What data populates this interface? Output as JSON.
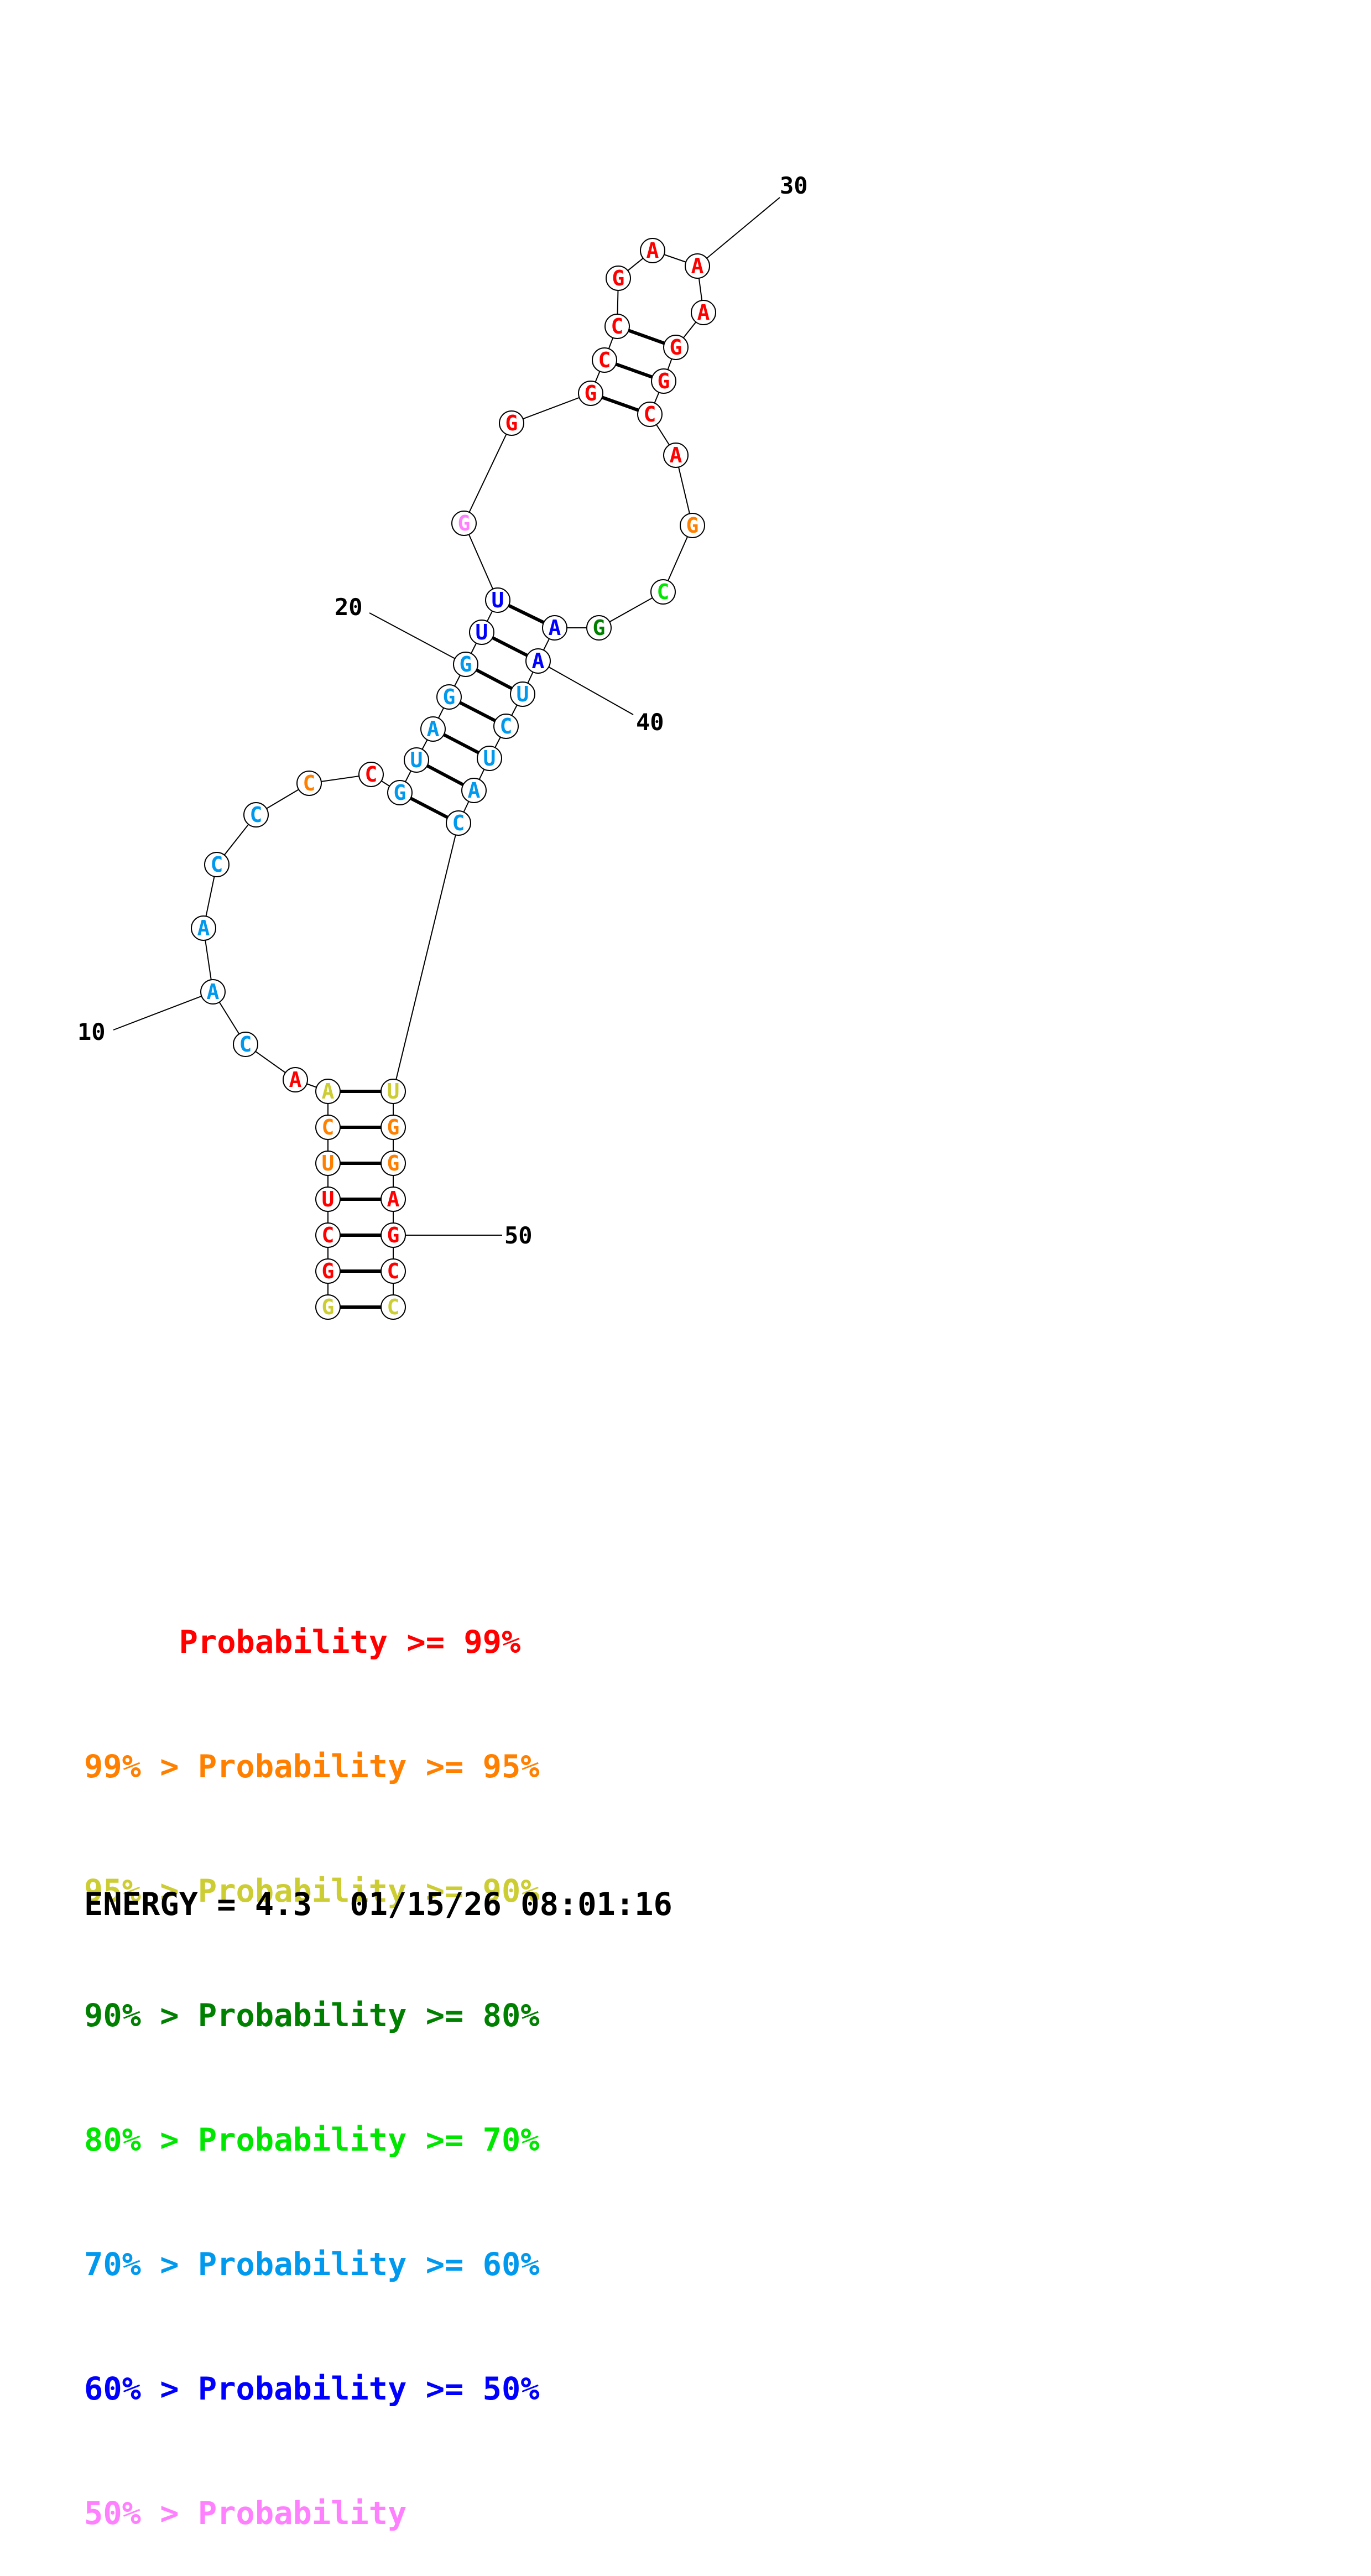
{
  "diagram": {
    "nucleotides": [
      {
        "n": 1,
        "base": "G",
        "level": 3
      },
      {
        "n": 2,
        "base": "G",
        "level": 1
      },
      {
        "n": 3,
        "base": "C",
        "level": 1
      },
      {
        "n": 4,
        "base": "U",
        "level": 1
      },
      {
        "n": 5,
        "base": "U",
        "level": 2
      },
      {
        "n": 6,
        "base": "C",
        "level": 2
      },
      {
        "n": 7,
        "base": "A",
        "level": 3
      },
      {
        "n": 8,
        "base": "A",
        "level": 1
      },
      {
        "n": 9,
        "base": "C",
        "level": 6
      },
      {
        "n": 10,
        "base": "A",
        "level": 6
      },
      {
        "n": 11,
        "base": "A",
        "level": 6
      },
      {
        "n": 12,
        "base": "C",
        "level": 6
      },
      {
        "n": 13,
        "base": "C",
        "level": 6
      },
      {
        "n": 14,
        "base": "C",
        "level": 2
      },
      {
        "n": 15,
        "base": "C",
        "level": 1
      },
      {
        "n": 16,
        "base": "G",
        "level": 6
      },
      {
        "n": 17,
        "base": "U",
        "level": 6
      },
      {
        "n": 18,
        "base": "A",
        "level": 6
      },
      {
        "n": 19,
        "base": "G",
        "level": 6
      },
      {
        "n": 20,
        "base": "G",
        "level": 6
      },
      {
        "n": 21,
        "base": "U",
        "level": 7
      },
      {
        "n": 22,
        "base": "U",
        "level": 7
      },
      {
        "n": 23,
        "base": "G",
        "level": 8
      },
      {
        "n": 24,
        "base": "G",
        "level": 1
      },
      {
        "n": 25,
        "base": "G",
        "level": 1
      },
      {
        "n": 26,
        "base": "C",
        "level": 1
      },
      {
        "n": 27,
        "base": "C",
        "level": 1
      },
      {
        "n": 28,
        "base": "G",
        "level": 1
      },
      {
        "n": 29,
        "base": "A",
        "level": 1
      },
      {
        "n": 30,
        "base": "A",
        "level": 1
      },
      {
        "n": 31,
        "base": "A",
        "level": 1
      },
      {
        "n": 32,
        "base": "G",
        "level": 1
      },
      {
        "n": 33,
        "base": "G",
        "level": 1
      },
      {
        "n": 34,
        "base": "C",
        "level": 1
      },
      {
        "n": 35,
        "base": "A",
        "level": 1
      },
      {
        "n": 36,
        "base": "G",
        "level": 2
      },
      {
        "n": 37,
        "base": "C",
        "level": 5
      },
      {
        "n": 38,
        "base": "G",
        "level": 4
      },
      {
        "n": 39,
        "base": "A",
        "level": 7
      },
      {
        "n": 40,
        "base": "A",
        "level": 7
      },
      {
        "n": 41,
        "base": "U",
        "level": 6
      },
      {
        "n": 42,
        "base": "C",
        "level": 6
      },
      {
        "n": 43,
        "base": "U",
        "level": 6
      },
      {
        "n": 44,
        "base": "A",
        "level": 6
      },
      {
        "n": 45,
        "base": "C",
        "level": 6
      },
      {
        "n": 46,
        "base": "U",
        "level": 3
      },
      {
        "n": 47,
        "base": "G",
        "level": 2
      },
      {
        "n": 48,
        "base": "G",
        "level": 2
      },
      {
        "n": 49,
        "base": "A",
        "level": 1
      },
      {
        "n": 50,
        "base": "G",
        "level": 1
      },
      {
        "n": 51,
        "base": "C",
        "level": 1
      },
      {
        "n": 52,
        "base": "C",
        "level": 3
      }
    ],
    "pairs": [
      [
        1,
        52
      ],
      [
        2,
        51
      ],
      [
        3,
        50
      ],
      [
        4,
        49
      ],
      [
        5,
        48
      ],
      [
        6,
        47
      ],
      [
        7,
        46
      ],
      [
        16,
        45
      ],
      [
        17,
        44
      ],
      [
        18,
        43
      ],
      [
        19,
        42
      ],
      [
        20,
        41
      ],
      [
        21,
        40
      ],
      [
        22,
        39
      ],
      [
        25,
        34
      ],
      [
        26,
        33
      ],
      [
        27,
        32
      ]
    ],
    "index_labels": [
      {
        "n": 10,
        "text": "10"
      },
      {
        "n": 20,
        "text": "20"
      },
      {
        "n": 30,
        "text": "30"
      },
      {
        "n": 40,
        "text": "40"
      },
      {
        "n": 50,
        "text": "50"
      }
    ]
  },
  "legend": {
    "lines": [
      {
        "text": "     Probability >= 99%",
        "color": "#ff0000"
      },
      {
        "text": "99% > Probability >= 95%",
        "color": "#ff8000"
      },
      {
        "text": "95% > Probability >= 90%",
        "color": "#cccc33"
      },
      {
        "text": "90% > Probability >= 80%",
        "color": "#008000"
      },
      {
        "text": "80% > Probability >= 70%",
        "color": "#00e600"
      },
      {
        "text": "70% > Probability >= 60%",
        "color": "#0099ee"
      },
      {
        "text": "60% > Probability >= 50%",
        "color": "#0000ff"
      },
      {
        "text": "50% > Probability",
        "color": "#ff80ff"
      }
    ]
  },
  "footer": {
    "energy_text": "ENERGY = 4.3  01/15/26 08:01:16"
  }
}
